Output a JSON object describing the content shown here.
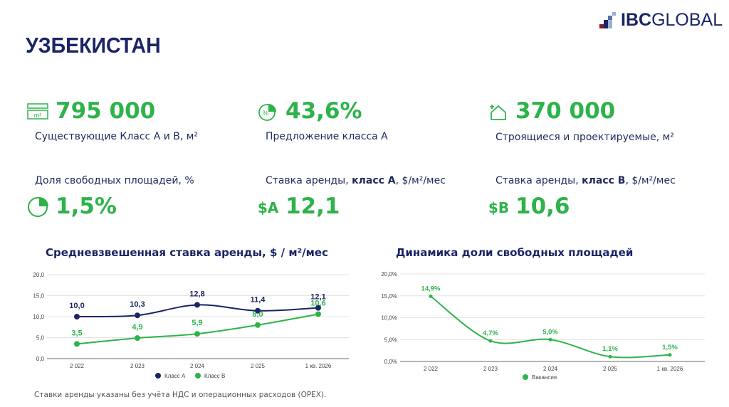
{
  "title": "УЗБЕКИСТАН",
  "logo": {
    "bold": "IBC",
    "light": "GLOBAL",
    "colors": [
      "#8b1a1a",
      "#1b2466",
      "#5a6fa8",
      "#9fb0cc"
    ]
  },
  "kpis": [
    {
      "icon": "area-m2-icon",
      "value": "795 000",
      "label": "Существующие Класс А и В, м²"
    },
    {
      "icon": "percent-pie-icon",
      "value": "43,6%",
      "label": "Предложение класса А"
    },
    {
      "icon": "construction-plus-icon",
      "value": "370 000",
      "label": "Строящиеся и проектируемые, м²"
    },
    {
      "icon": "pie-chart-icon",
      "value": "1,5%",
      "label": "Доля свободных площадей, %"
    },
    {
      "icon": "dollar-a-icon",
      "icon_text": "$A",
      "value": "12,1",
      "label_pre": "Ставка аренды, ",
      "label_bold": "класс А",
      "label_post": ", $/м²/мес"
    },
    {
      "icon": "dollar-b-icon",
      "icon_text": "$B",
      "value": "10,6",
      "label_pre": "Ставка аренды, ",
      "label_bold": "класс В",
      "label_post": ", $/м²/мес"
    }
  ],
  "colors": {
    "accent": "#2db34a",
    "navy": "#1b2466"
  },
  "chart_data": [
    {
      "type": "line",
      "title": "Средневзвешенная ставка аренды, $ / м²/мес",
      "categories": [
        "2 022",
        "2 023",
        "2 024",
        "2 025",
        "1 кв. 2026"
      ],
      "yticks": [
        "0,0",
        "5,0",
        "10,0",
        "15,0",
        "20,0"
      ],
      "ylim": [
        0,
        20
      ],
      "grid": true,
      "legend": "bottom",
      "series": [
        {
          "name": "Класс А",
          "color": "#1b2466",
          "values": [
            10.0,
            10.3,
            12.8,
            11.4,
            12.1
          ],
          "labels": [
            "10,0",
            "10,3",
            "12,8",
            "11,4",
            "12,1"
          ]
        },
        {
          "name": "Класс В",
          "color": "#2db34a",
          "values": [
            3.5,
            4.9,
            5.9,
            8.0,
            10.6
          ],
          "labels": [
            "3,5",
            "4,9",
            "5,9",
            "8,0",
            "10,6"
          ]
        }
      ]
    },
    {
      "type": "line",
      "title": "Динамика доли свободных площадей",
      "categories": [
        "2 022",
        "2 023",
        "2 024",
        "2 025",
        "1 кв. 2026"
      ],
      "yticks": [
        "0,0%",
        "5,0%",
        "10,0%",
        "15,0%",
        "20,0%"
      ],
      "ylim": [
        0,
        20
      ],
      "grid": true,
      "legend": "bottom",
      "series": [
        {
          "name": "Вакансия",
          "color": "#2db34a",
          "values": [
            14.9,
            4.7,
            5.0,
            1.1,
            1.5
          ],
          "labels": [
            "14,9%",
            "4,7%",
            "5,0%",
            "1,1%",
            "1,5%"
          ]
        }
      ]
    }
  ],
  "footnote": "Ставки аренды указаны без учёта НДС и операционных расходов (OPEX)."
}
